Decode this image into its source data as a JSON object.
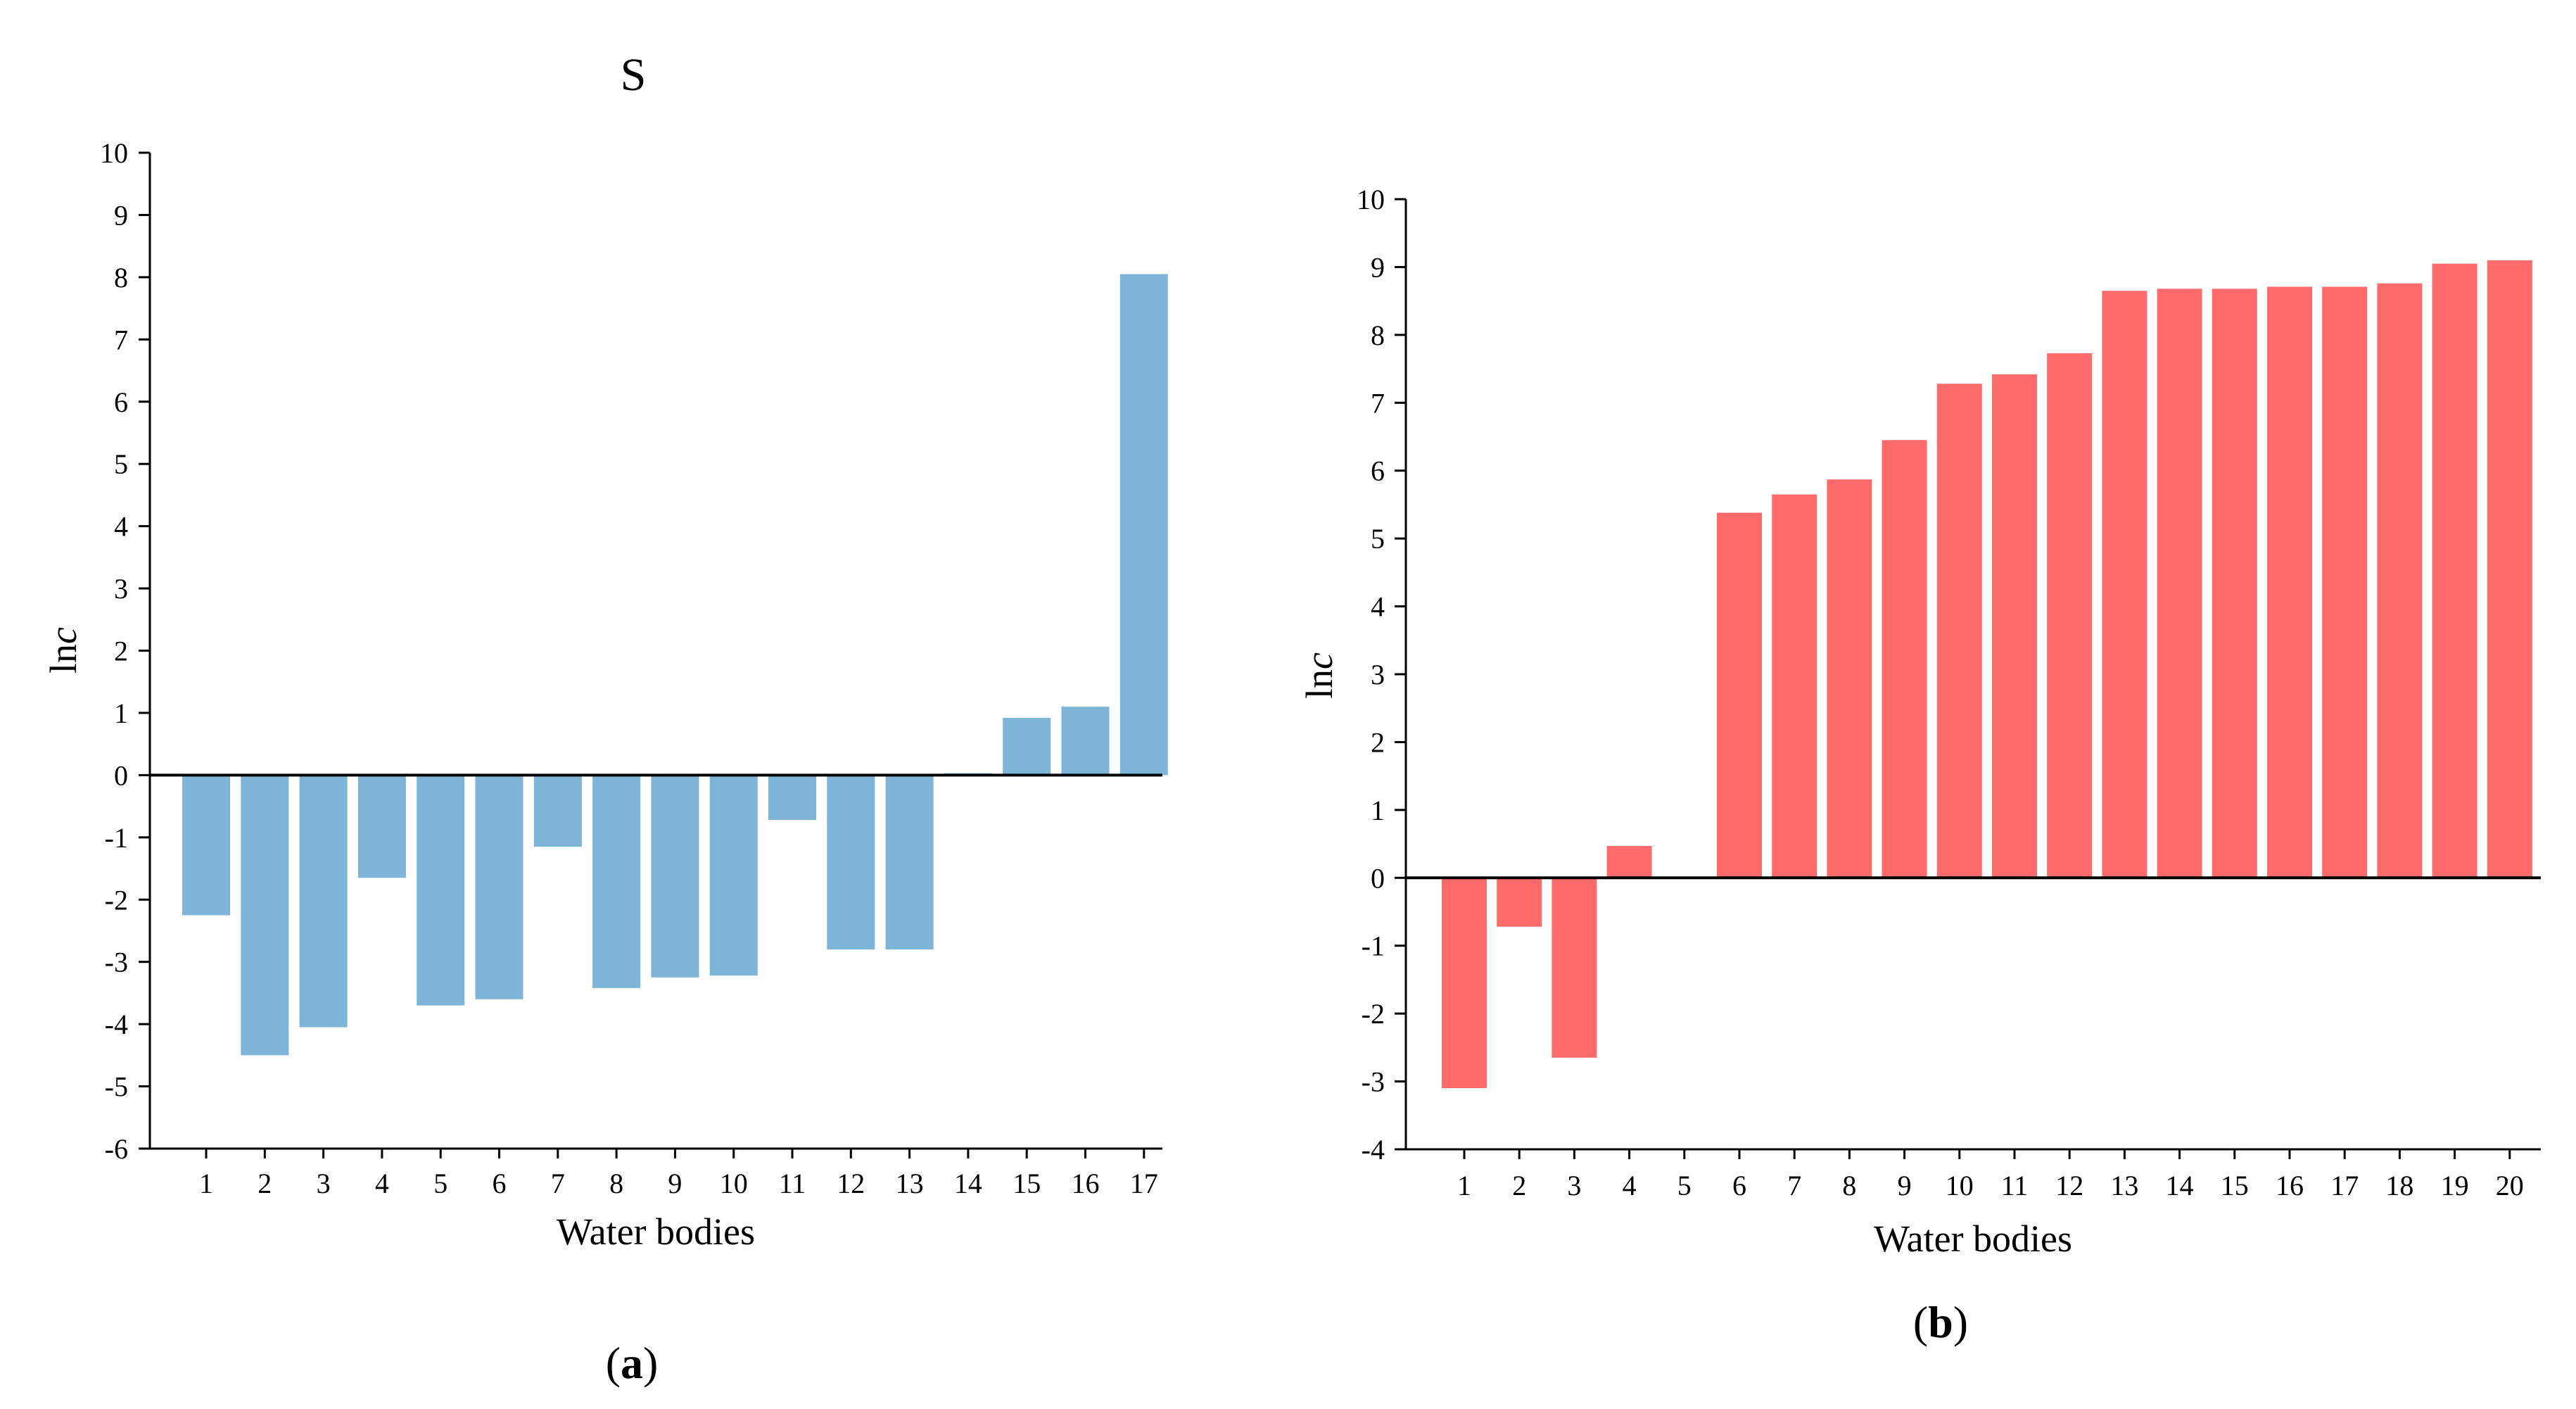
{
  "figure": {
    "stray_text": "S",
    "colors": {
      "panel_a": "#7EB4D8",
      "panel_b": "#FF6B6B",
      "axis": "#000000"
    }
  },
  "chart_data": [
    {
      "type": "bar",
      "panel_label": "a",
      "xlabel": "Water bodies",
      "ylabel_prefix": "ln",
      "ylabel_italic": "c",
      "ylim": [
        -6,
        10
      ],
      "yticks": [
        "-6",
        "-5",
        "-4",
        "-3",
        "-2",
        "-1",
        "0",
        "1",
        "2",
        "3",
        "4",
        "5",
        "6",
        "7",
        "8",
        "9",
        "10"
      ],
      "categories": [
        "1",
        "2",
        "3",
        "4",
        "5",
        "6",
        "7",
        "8",
        "9",
        "10",
        "11",
        "12",
        "13",
        "14",
        "15",
        "16",
        "17"
      ],
      "values": [
        -2.25,
        -4.5,
        -4.05,
        -1.65,
        -3.7,
        -3.6,
        -1.15,
        -3.42,
        -3.25,
        -3.22,
        -0.72,
        -2.8,
        -2.8,
        0.03,
        0.92,
        1.1,
        8.05
      ],
      "color": "#7EB4D8"
    },
    {
      "type": "bar",
      "panel_label": "b",
      "xlabel": "Water bodies",
      "ylabel_prefix": "ln",
      "ylabel_italic": "c",
      "ylim": [
        -4,
        10
      ],
      "yticks": [
        "-4",
        "-3",
        "-2",
        "-1",
        "0",
        "1",
        "2",
        "3",
        "4",
        "5",
        "6",
        "7",
        "8",
        "9",
        "10"
      ],
      "categories": [
        "1",
        "2",
        "3",
        "4",
        "5",
        "6",
        "7",
        "8",
        "9",
        "10",
        "11",
        "12",
        "13",
        "14",
        "15",
        "16",
        "17",
        "18",
        "19",
        "20"
      ],
      "values": [
        -3.1,
        -0.72,
        -2.65,
        0.47,
        0,
        5.38,
        5.65,
        5.87,
        6.45,
        7.28,
        7.42,
        7.73,
        8.65,
        8.68,
        8.68,
        8.71,
        8.71,
        8.76,
        9.05,
        9.1
      ],
      "color": "#FF6B6B"
    }
  ]
}
